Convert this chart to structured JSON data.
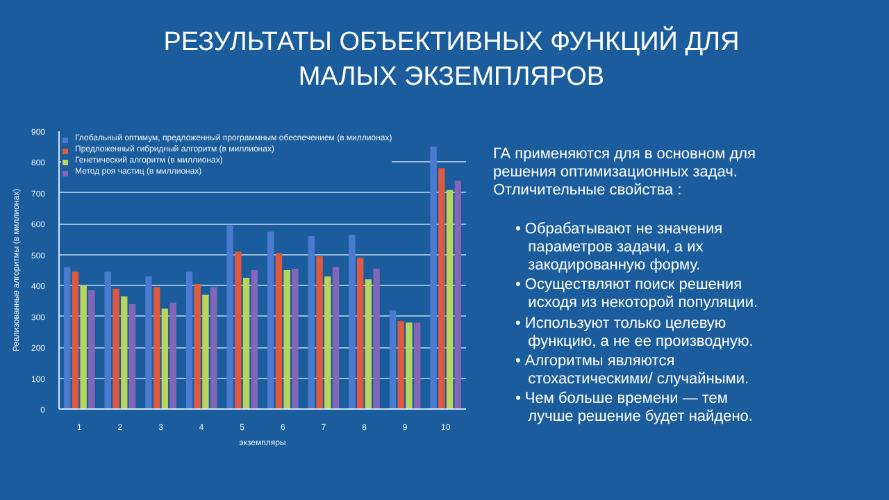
{
  "chart_data": {
    "type": "bar",
    "title": "РЕЗУЛЬТАТЫ ОБЪЕКТИВНЫХ ФУНКЦИЙ ДЛЯ\nМАЛЫХ ЭКЗЕМПЛЯРОВ",
    "xlabel": "экземпляры",
    "ylabel": "Реализованные алгоритмы (в миллионах)",
    "categories": [
      "1",
      "2",
      "3",
      "4",
      "5",
      "6",
      "7",
      "8",
      "9",
      "10"
    ],
    "series": [
      {
        "name": "Глобальный оптимум, предложенный программным обеспечением (в миллионах)",
        "color": "#4a7bd0",
        "values": [
          460,
          445,
          430,
          445,
          595,
          575,
          560,
          565,
          320,
          850
        ]
      },
      {
        "name": "Предложенный гибридный алгоритм (в миллионах)",
        "color": "#e0593f",
        "values": [
          445,
          390,
          395,
          405,
          510,
          505,
          495,
          490,
          285,
          780
        ]
      },
      {
        "name": "Генетический алгоритм (в миллионах)",
        "color": "#b8d65e",
        "values": [
          400,
          365,
          325,
          370,
          425,
          450,
          430,
          420,
          280,
          710
        ]
      },
      {
        "name": "Метод роя частиц (в миллионах)",
        "color": "#8466b8",
        "values": [
          385,
          340,
          345,
          395,
          450,
          455,
          460,
          455,
          280,
          740
        ]
      }
    ],
    "ylim": [
      0,
      900
    ],
    "yticks": [
      0,
      100,
      200,
      300,
      400,
      500,
      600,
      700,
      800,
      900
    ],
    "grid": "y",
    "legend": "top left",
    "annotations": [
      "ГА применяются для в основном для\nрешения оптимизационных задач.\nОтличительные свойства :",
      "• Обрабатывают не значения\n   параметров задачи, а их\n   закодированную форму.",
      "• Осуществляют поиск решения\n   исходя из некоторой популяции.",
      "• Используют только целевую\n   функцию, а не ее производную.",
      "• Алгоритмы являются\n   стохастическими/ случайными.",
      "• Чем больше времени — тем\n   лучше решение будет найдено."
    ]
  }
}
